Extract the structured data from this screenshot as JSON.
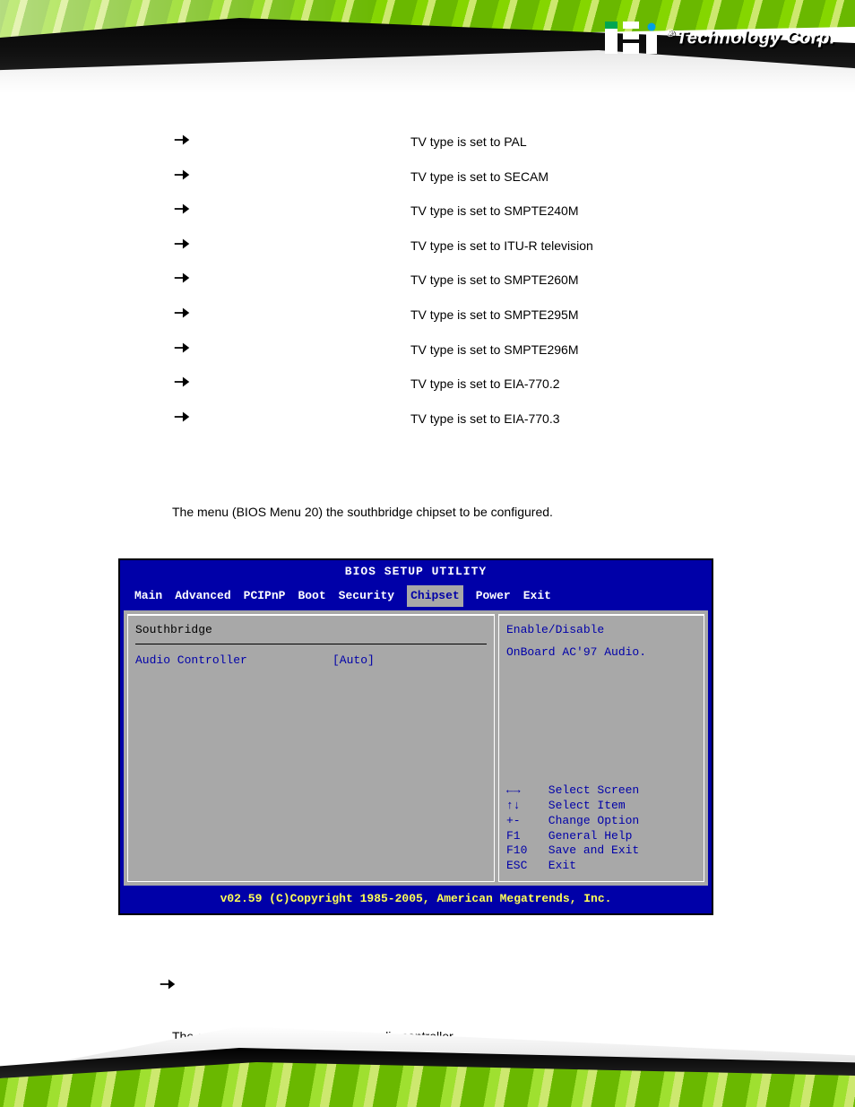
{
  "banner": {
    "brand_text": "Technology Corp.",
    "registered": "®"
  },
  "tv_rows": [
    {
      "label": "",
      "desc": "TV type is set to PAL"
    },
    {
      "label": "",
      "desc": "TV type is set to SECAM"
    },
    {
      "label": "",
      "desc": "TV type is set to SMPTE240M"
    },
    {
      "label": "",
      "desc": "TV type is set to ITU-R television"
    },
    {
      "label": "",
      "desc": "TV type is set to SMPTE260M"
    },
    {
      "label": "",
      "desc": "TV type is set to SMPTE295M"
    },
    {
      "label": "",
      "desc": "TV type is set to SMPTE296M"
    },
    {
      "label": "",
      "desc": "TV type is set to EIA-770.2"
    },
    {
      "label": "",
      "desc": "TV type is set to EIA-770.3"
    }
  ],
  "section_paragraph": {
    "pre": "The ",
    "mid": "",
    "post": " menu (BIOS Menu 20) the southbridge chipset to be configured."
  },
  "bios": {
    "title": "BIOS SETUP UTILITY",
    "tabs": [
      "Main",
      "Advanced",
      "PCIPnP",
      "Boot",
      "Security",
      "Chipset",
      "Power",
      "Exit"
    ],
    "selected_tab_index": 5,
    "left_header": "Southbridge",
    "left_rows": [
      {
        "label": "Audio Controller",
        "value": "[Auto]"
      }
    ],
    "right_help": "Enable/Disable\nOnBoard AC'97 Audio.",
    "keys_text": "←→    Select Screen\n↑↓    Select Item\n+-    Change Option\nF1    General Help\nF10   Save and Exit\nESC   Exit",
    "footer": "v02.59 (C)Copyright 1985-2005, American Megatrends, Inc."
  },
  "audio": {
    "arrow_label": "",
    "text_pre": "The ",
    "text_post": " option enables or disables the audio controller."
  },
  "colors": {
    "bios_bg": "#0000a8",
    "bios_panel": "#a8a8a8",
    "bios_yellow": "#ffff55"
  }
}
